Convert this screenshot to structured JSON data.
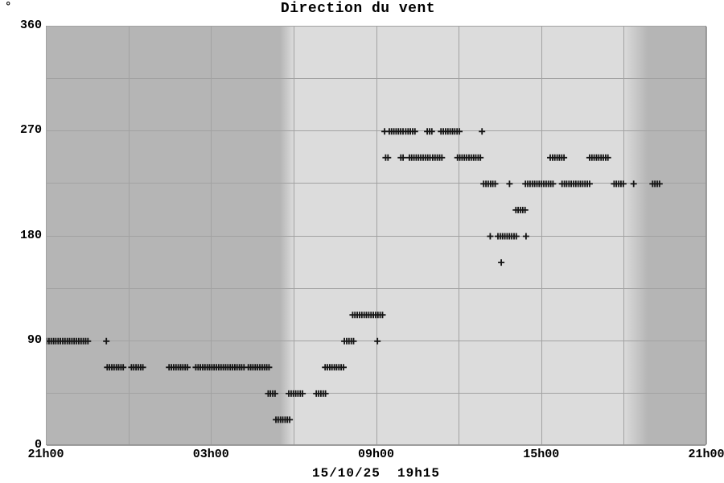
{
  "chart": {
    "title": "Direction du vent",
    "y_unit": "°",
    "date_label": "15/10/25  19h15"
  },
  "chart_data": {
    "type": "scatter",
    "marker": "plus",
    "title": "Direction du vent",
    "ylabel": "°",
    "xlabel": "15/10/25 19h15",
    "x_axis": {
      "span_hours": 24,
      "start_label": "21h00",
      "end_label": "21h00",
      "grid_step_hours": 3,
      "ticks": [
        {
          "label": "21h00",
          "h": 0
        },
        {
          "label": "03h00",
          "h": 6
        },
        {
          "label": "09h00",
          "h": 12
        },
        {
          "label": "15h00",
          "h": 18
        },
        {
          "label": "21h00",
          "h": 24
        }
      ]
    },
    "y_axis": {
      "min": 0,
      "max": 360,
      "grid_step": 45,
      "ticks": [
        {
          "label": "0",
          "deg": 0
        },
        {
          "label": "90",
          "deg": 90
        },
        {
          "label": "180",
          "deg": 180
        },
        {
          "label": "270",
          "deg": 270
        },
        {
          "label": "360",
          "deg": 360
        }
      ]
    },
    "sample_step_minutes": 5,
    "segments": [
      {
        "dir": 90,
        "start": 0.0,
        "end": 1.58
      },
      {
        "dir": 90,
        "start": 2.17,
        "end": 2.17
      },
      {
        "dir": 67.5,
        "start": 2.2,
        "end": 2.82
      },
      {
        "dir": 67.5,
        "start": 3.08,
        "end": 3.5
      },
      {
        "dir": 67.5,
        "start": 4.45,
        "end": 5.13
      },
      {
        "dir": 67.5,
        "start": 5.42,
        "end": 7.17
      },
      {
        "dir": 67.5,
        "start": 7.33,
        "end": 8.12
      },
      {
        "dir": 45,
        "start": 8.05,
        "end": 8.37
      },
      {
        "dir": 22.5,
        "start": 8.33,
        "end": 8.83
      },
      {
        "dir": 45,
        "start": 8.8,
        "end": 9.33
      },
      {
        "dir": 45,
        "start": 9.8,
        "end": 10.17
      },
      {
        "dir": 67.5,
        "start": 10.12,
        "end": 10.83
      },
      {
        "dir": 90,
        "start": 10.82,
        "end": 11.2
      },
      {
        "dir": 112.5,
        "start": 11.12,
        "end": 12.27
      },
      {
        "dir": 90,
        "start": 12.02,
        "end": 12.02
      },
      {
        "dir": 270,
        "start": 12.28,
        "end": 12.28
      },
      {
        "dir": 247.5,
        "start": 12.32,
        "end": 12.45
      },
      {
        "dir": 270,
        "start": 12.45,
        "end": 13.0
      },
      {
        "dir": 247.5,
        "start": 12.87,
        "end": 13.03
      },
      {
        "dir": 270,
        "start": 13.05,
        "end": 13.43
      },
      {
        "dir": 247.5,
        "start": 13.18,
        "end": 13.97
      },
      {
        "dir": 270,
        "start": 13.83,
        "end": 14.05
      },
      {
        "dir": 247.5,
        "start": 14.03,
        "end": 14.42
      },
      {
        "dir": 270,
        "start": 14.33,
        "end": 15.0
      },
      {
        "dir": 247.5,
        "start": 14.93,
        "end": 15.78
      },
      {
        "dir": 270,
        "start": 15.82,
        "end": 15.82
      },
      {
        "dir": 225,
        "start": 15.88,
        "end": 16.37
      },
      {
        "dir": 180,
        "start": 16.12,
        "end": 16.12
      },
      {
        "dir": 180,
        "start": 16.4,
        "end": 17.1
      },
      {
        "dir": 157.5,
        "start": 16.52,
        "end": 16.52
      },
      {
        "dir": 225,
        "start": 16.82,
        "end": 16.82
      },
      {
        "dir": 202.5,
        "start": 17.05,
        "end": 17.4
      },
      {
        "dir": 180,
        "start": 17.42,
        "end": 17.42
      },
      {
        "dir": 225,
        "start": 17.4,
        "end": 18.42
      },
      {
        "dir": 247.5,
        "start": 18.3,
        "end": 18.88
      },
      {
        "dir": 225,
        "start": 18.73,
        "end": 19.8
      },
      {
        "dir": 247.5,
        "start": 19.73,
        "end": 20.47
      },
      {
        "dir": 225,
        "start": 20.62,
        "end": 20.97
      },
      {
        "dir": 225,
        "start": 21.33,
        "end": 21.33
      },
      {
        "dir": 225,
        "start": 22.02,
        "end": 22.3
      }
    ],
    "night_shading": {
      "left_solid_until_h": 8.5,
      "left_fade_until_h": 9.0,
      "right_fade_from_h": 21.0,
      "right_solid_from_h": 21.9
    },
    "colors": {
      "day_bg": "#dcdcdc",
      "night_bg": "#b5b5b5",
      "grid": "#a2a2a2",
      "frame": "#919191",
      "marker": "#141414",
      "text": "#000000"
    }
  }
}
